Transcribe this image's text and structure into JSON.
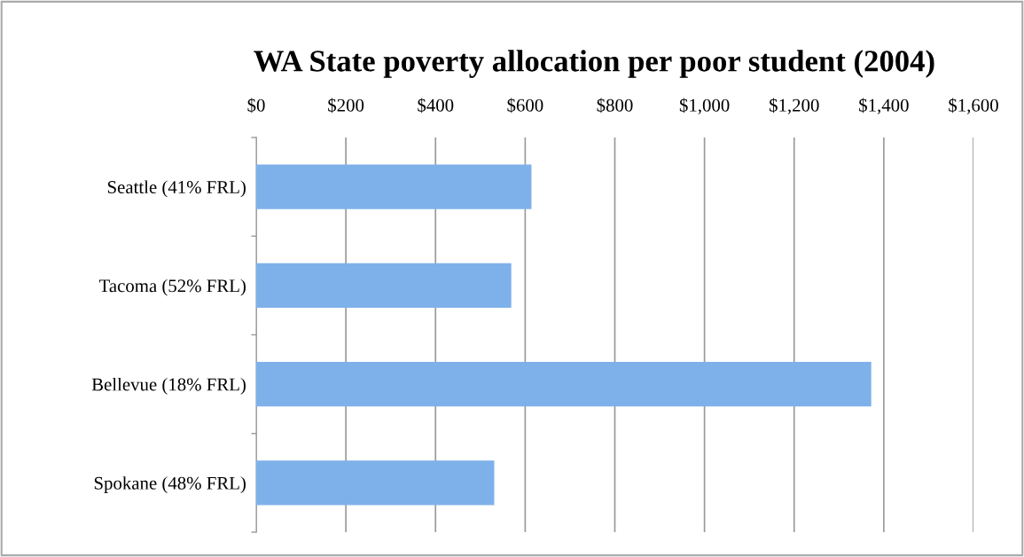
{
  "chart_data": {
    "type": "bar",
    "orientation": "horizontal",
    "title": "WA State poverty allocation per poor student (2004)",
    "categories": [
      "Seattle (41% FRL)",
      "Tacoma (52% FRL)",
      "Bellevue (18% FRL)",
      "Spokane (48% FRL)"
    ],
    "values": [
      614,
      569,
      1372,
      531
    ],
    "color": "#7eb1ea",
    "xlim": [
      0,
      1600
    ],
    "xticks": [
      {
        "value": 0,
        "label": "$0"
      },
      {
        "value": 200,
        "label": "$200"
      },
      {
        "value": 400,
        "label": "$400"
      },
      {
        "value": 600,
        "label": "$600"
      },
      {
        "value": 800,
        "label": "$800"
      },
      {
        "value": 1000,
        "label": "$1,000"
      },
      {
        "value": 1200,
        "label": "$1,200"
      },
      {
        "value": 1400,
        "label": "$1,400"
      },
      {
        "value": 1600,
        "label": "$1,600"
      }
    ],
    "grid": "x",
    "legend": false
  }
}
